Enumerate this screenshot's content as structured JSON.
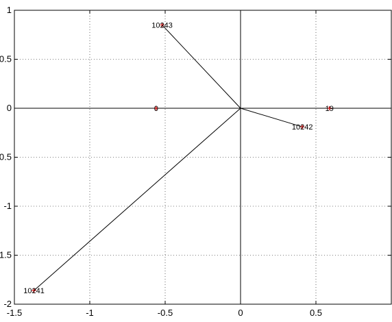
{
  "chart_data": {
    "type": "scatter",
    "title": "",
    "xlabel": "",
    "ylabel": "",
    "xlim": [
      -1.5,
      1.0
    ],
    "ylim": [
      -2,
      1
    ],
    "xticks": [
      -1.5,
      -1,
      -0.5,
      0,
      0.5
    ],
    "xtick_labels": [
      "-1.5",
      "-1",
      "-0.5",
      "0",
      "0.5"
    ],
    "yticks": [
      -2,
      -1.5,
      -1,
      -0.5,
      0,
      0.5,
      1
    ],
    "ytick_labels": [
      "-2",
      "-1.5",
      "-1",
      "-0.5",
      "0",
      "0.5",
      "1"
    ],
    "grid": true,
    "origin": [
      0,
      0
    ],
    "marker_color": "#d00000",
    "points": [
      {
        "label": "10243",
        "x": -0.52,
        "y": 0.85,
        "ray": true
      },
      {
        "label": "10242",
        "x": 0.41,
        "y": -0.19,
        "ray": true
      },
      {
        "label": "10241",
        "x": -1.37,
        "y": -1.86,
        "ray": true
      },
      {
        "label": "0",
        "x": -0.56,
        "y": 0.0,
        "ray": false
      },
      {
        "label": "19",
        "x": 0.59,
        "y": 0.0,
        "ray": false
      }
    ]
  }
}
